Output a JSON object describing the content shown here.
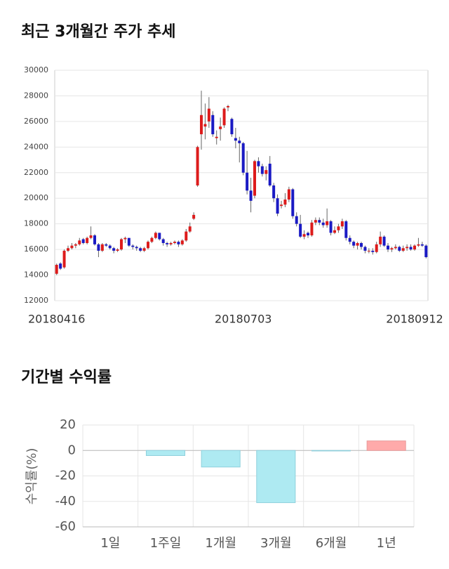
{
  "charts": [
    {
      "type": "candlestick",
      "title": "최근 3개월간 주가 추세",
      "categories": [
        "20180416",
        null,
        null,
        null,
        null,
        null,
        null,
        null,
        null,
        null,
        null,
        null,
        null,
        null,
        null,
        null,
        null,
        null,
        null,
        null,
        null,
        null,
        null,
        null,
        null,
        null,
        null,
        null,
        null,
        null,
        null,
        null,
        null,
        null,
        null,
        null,
        null,
        null,
        null,
        null,
        null,
        null,
        null,
        null,
        null,
        null,
        null,
        null,
        null,
        "20180703",
        null,
        null,
        null,
        null,
        null,
        null,
        null,
        null,
        null,
        null,
        null,
        null,
        null,
        null,
        null,
        null,
        null,
        null,
        null,
        null,
        null,
        null,
        null,
        null,
        null,
        null,
        null,
        null,
        null,
        null,
        null,
        null,
        null,
        null,
        null,
        null,
        null,
        null,
        null,
        null,
        null,
        null,
        null,
        null,
        "20180912",
        null,
        null,
        null
      ],
      "open": [
        14100,
        14900,
        14600,
        15900,
        16100,
        16300,
        16400,
        16800,
        16500,
        16900,
        17100,
        16400,
        15900,
        16400,
        16300,
        16100,
        15900,
        16000,
        16800,
        16900,
        16300,
        16200,
        16100,
        15900,
        16100,
        16600,
        16900,
        17300,
        16800,
        16500,
        16400,
        16500,
        16600,
        16400,
        16700,
        17400,
        18400,
        21000,
        25000,
        25600,
        26000,
        26500,
        24700,
        25400,
        25700,
        27100,
        26200,
        24700,
        24500,
        24300,
        22000,
        20600,
        20200,
        22900,
        22500,
        21900,
        22700,
        21000,
        20000,
        19400,
        19500,
        19900,
        20700,
        18600,
        18000,
        17000,
        17300,
        17100,
        18100,
        18300,
        18100,
        17900,
        18200,
        17300,
        17500,
        17800,
        18200,
        16900,
        16600,
        16300,
        16500,
        16200,
        15900,
        15900,
        15800,
        16400,
        17000,
        16300,
        16000,
        16100,
        16200,
        15900,
        16100,
        16200,
        16000,
        16300,
        16400,
        16300
      ],
      "high": [
        14900,
        15000,
        16000,
        16300,
        16500,
        16500,
        16900,
        16900,
        17000,
        17800,
        17200,
        16500,
        16500,
        16500,
        16400,
        16200,
        16100,
        16900,
        17000,
        16900,
        16400,
        16300,
        16200,
        16200,
        16700,
        17000,
        17400,
        17300,
        16900,
        16600,
        16600,
        16700,
        16700,
        16800,
        17600,
        18100,
        18900,
        24100,
        28400,
        27400,
        27900,
        26800,
        25300,
        26300,
        27100,
        27300,
        26300,
        25500,
        24800,
        24400,
        23700,
        21600,
        23000,
        23200,
        22700,
        22500,
        23300,
        21200,
        20300,
        19800,
        20400,
        20900,
        20800,
        18900,
        18700,
        17500,
        17400,
        18300,
        18500,
        18500,
        18400,
        19200,
        18300,
        17800,
        18000,
        18400,
        18300,
        17100,
        16700,
        16600,
        16600,
        16300,
        16100,
        16100,
        16600,
        17400,
        17100,
        16500,
        16200,
        16400,
        16300,
        16300,
        16400,
        16400,
        16400,
        16900,
        16600,
        16400
      ],
      "low": [
        14000,
        14400,
        14500,
        15800,
        16000,
        16100,
        16300,
        16400,
        16400,
        16800,
        16300,
        15400,
        15800,
        16200,
        16000,
        15700,
        15800,
        15900,
        16500,
        16200,
        16000,
        15900,
        15800,
        15800,
        16000,
        16500,
        16800,
        16700,
        16300,
        16200,
        16300,
        16400,
        16200,
        16300,
        16600,
        17300,
        18300,
        20900,
        23800,
        24600,
        25500,
        24800,
        24200,
        24500,
        25500,
        26800,
        24800,
        23900,
        22800,
        21800,
        20300,
        18900,
        20000,
        22000,
        21700,
        21400,
        20900,
        19700,
        18600,
        19200,
        19300,
        19700,
        18400,
        17800,
        16900,
        16800,
        16900,
        17000,
        17900,
        17900,
        17700,
        17700,
        17100,
        17200,
        17300,
        17600,
        16700,
        16400,
        16100,
        16000,
        16000,
        15700,
        15700,
        15600,
        15700,
        16200,
        16200,
        15800,
        15800,
        16000,
        15800,
        15800,
        15900,
        15900,
        15900,
        16200,
        16200,
        15300
      ],
      "close": [
        14800,
        14500,
        15900,
        16100,
        16300,
        16400,
        16700,
        16500,
        16900,
        17100,
        16400,
        15900,
        16400,
        16300,
        16100,
        15900,
        16000,
        16800,
        16900,
        16300,
        16200,
        16100,
        15900,
        16100,
        16600,
        16900,
        17300,
        16800,
        16500,
        16400,
        16500,
        16600,
        16400,
        16700,
        17400,
        17800,
        18700,
        24000,
        26500,
        25800,
        27000,
        25000,
        24800,
        25600,
        27000,
        27200,
        25000,
        24500,
        24300,
        22000,
        20600,
        19800,
        22900,
        22500,
        21900,
        22200,
        21000,
        20000,
        18800,
        19500,
        19900,
        20700,
        18600,
        18000,
        17000,
        17200,
        17100,
        18100,
        18300,
        18100,
        17900,
        18200,
        17300,
        17500,
        17800,
        18200,
        16900,
        16600,
        16300,
        16500,
        16200,
        15900,
        15900,
        15800,
        16400,
        17000,
        16300,
        16000,
        16100,
        16200,
        15900,
        16100,
        16200,
        16000,
        16300,
        16400,
        16300,
        15400
      ],
      "up_color": "#dd1b1b",
      "down_color": "#1a1ac4",
      "ylim": [
        12000,
        30000
      ],
      "yticks": [
        12000,
        14000,
        16000,
        18000,
        20000,
        22000,
        24000,
        26000,
        28000,
        30000
      ],
      "grid": true
    },
    {
      "type": "bar",
      "title": "기간별 수익률",
      "y_label": "수익률(%)",
      "categories": [
        "1일",
        "1주일",
        "1개월",
        "3개월",
        "6개월",
        "1년"
      ],
      "values": [
        0,
        -4,
        -13,
        -41,
        -0.4,
        7.5
      ],
      "positive_color": "#ffaaaa",
      "negative_color": "#aeeaf2",
      "ylim": [
        -60,
        20
      ],
      "yticks": [
        20,
        0,
        -20,
        -40,
        -60
      ],
      "grid": true
    }
  ]
}
